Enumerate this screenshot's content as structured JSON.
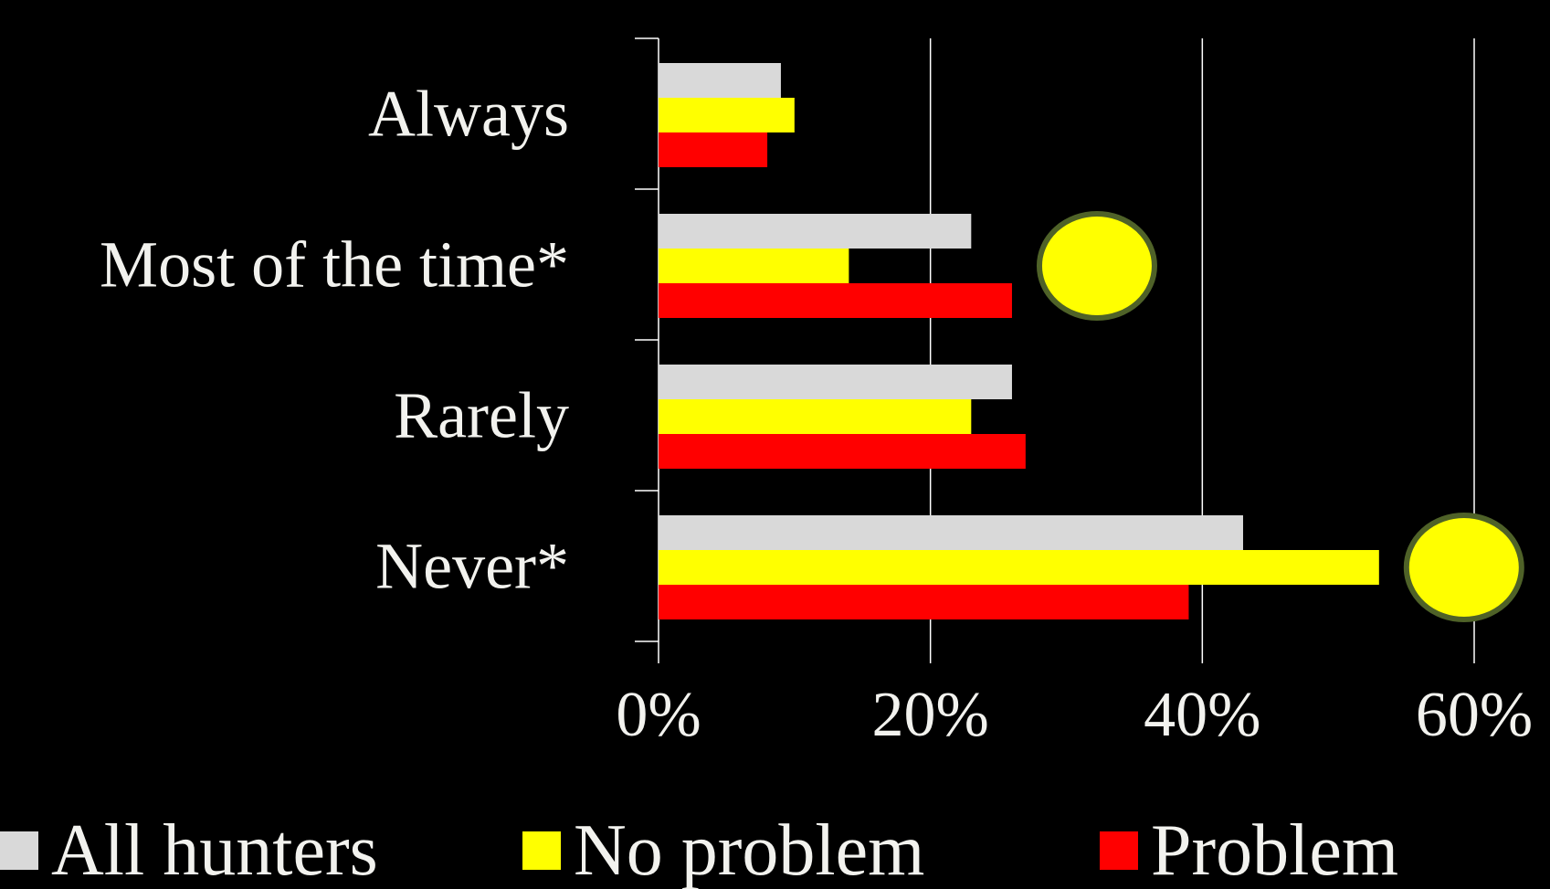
{
  "chart_data": {
    "type": "bar",
    "orientation": "horizontal",
    "categories": [
      "Always",
      "Most of the time*",
      "Rarely",
      "Never*"
    ],
    "series": [
      {
        "name": "All hunters",
        "color": "#d9d9d9",
        "values": [
          9,
          23,
          26,
          43
        ]
      },
      {
        "name": "No problem",
        "color": "#ffff00",
        "values": [
          10,
          14,
          23,
          53
        ]
      },
      {
        "name": "Problem",
        "color": "#ff0000",
        "values": [
          8,
          26,
          27,
          39
        ]
      }
    ],
    "xlim": [
      0,
      60
    ],
    "xticks": [
      0,
      20,
      40,
      60
    ],
    "xtick_labels": [
      "0%",
      "20%",
      "40%",
      "60%"
    ],
    "grid": true,
    "legend_position": "bottom",
    "annotations": [
      {
        "shape": "yellow-circle",
        "category": "Most of the time*",
        "fill": "#ffff00",
        "stroke": "#4f6228"
      },
      {
        "shape": "yellow-circle",
        "category": "Never*",
        "fill": "#ffff00",
        "stroke": "#4f6228"
      }
    ]
  }
}
